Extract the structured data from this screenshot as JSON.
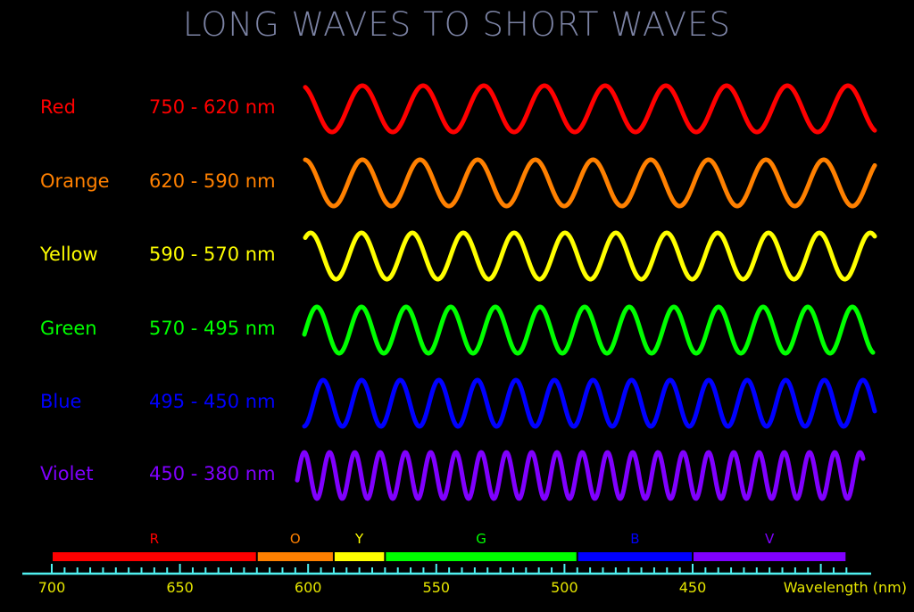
{
  "title": "LONG WAVES TO SHORT WAVES",
  "colors_list": [
    {
      "name": "Red",
      "range": "750 - 620 nm",
      "color": "#ff0000",
      "letter": "R",
      "band_nm": [
        700,
        620
      ]
    },
    {
      "name": "Orange",
      "range": "620 - 590 nm",
      "color": "#ff8000",
      "letter": "O",
      "band_nm": [
        620,
        590
      ]
    },
    {
      "name": "Yellow",
      "range": "590 - 570 nm",
      "color": "#ffff00",
      "letter": "Y",
      "band_nm": [
        590,
        570
      ]
    },
    {
      "name": "Green",
      "range": "570 - 495 nm",
      "color": "#00ff00",
      "letter": "G",
      "band_nm": [
        570,
        495
      ]
    },
    {
      "name": "Blue",
      "range": "495 - 450 nm",
      "color": "#0000ff",
      "letter": "B",
      "band_nm": [
        495,
        450
      ]
    },
    {
      "name": "Violet",
      "range": "450 - 380 nm",
      "color": "#8000ff",
      "letter": "V",
      "band_nm": [
        450,
        390
      ]
    }
  ],
  "axis": {
    "label": "Wavelength (nm)",
    "ticks": [
      "700",
      "650",
      "600",
      "550",
      "500",
      "450"
    ],
    "color": "#4ff0f0",
    "label_color": "#e6e600"
  },
  "title_color": "#7c83a4"
}
